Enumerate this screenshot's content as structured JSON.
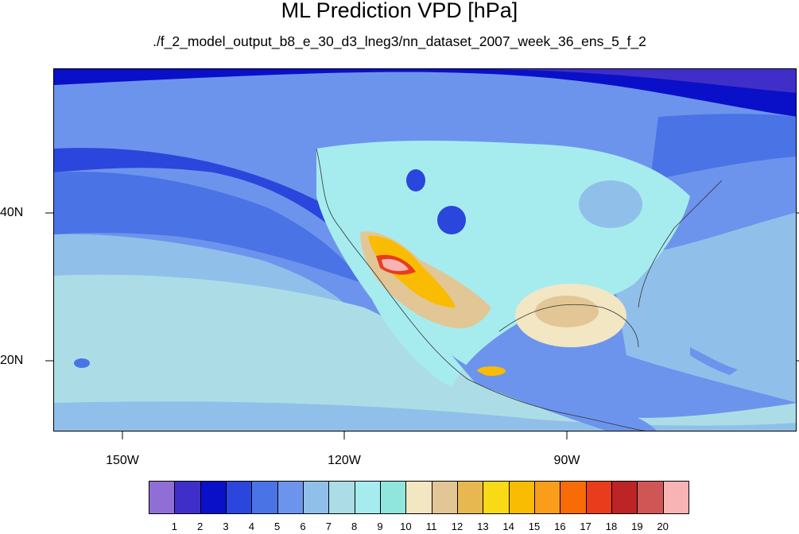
{
  "header": {
    "title": "ML Prediction VPD [hPa]",
    "subtitle": "./f_2_model_output_b8_e_30_d3_lneg3/nn_dataset_2007_week_36_ens_5_f_2"
  },
  "axes": {
    "lat_labels": [
      "40N",
      "20N"
    ],
    "lon_labels": [
      "150W",
      "120W",
      "90W"
    ]
  },
  "colorbar": {
    "colors": [
      "#8f6fd6",
      "#3f2fc8",
      "#0a10c8",
      "#2a46dc",
      "#4a73e6",
      "#6d94ec",
      "#90c0ea",
      "#acdde6",
      "#a6ecef",
      "#90e6dc",
      "#f2e6c3",
      "#e2c696",
      "#e8b850",
      "#f9da16",
      "#f9bc02",
      "#f99d1b",
      "#f86c08",
      "#e93c1c",
      "#bc2426",
      "#d05656",
      "#f8b4b4"
    ],
    "labels": [
      "1",
      "2",
      "3",
      "4",
      "5",
      "6",
      "7",
      "8",
      "9",
      "10",
      "11",
      "12",
      "13",
      "14",
      "15",
      "16",
      "17",
      "18",
      "19",
      "20"
    ]
  }
}
